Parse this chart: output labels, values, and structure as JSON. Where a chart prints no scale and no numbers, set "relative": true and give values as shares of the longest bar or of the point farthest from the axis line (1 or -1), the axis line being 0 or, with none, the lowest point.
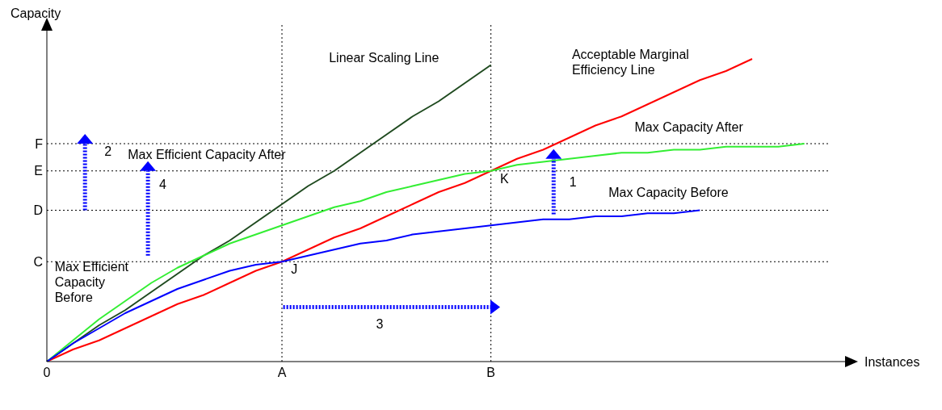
{
  "chart_data": {
    "type": "line",
    "relative": true,
    "xlabel": "Instances",
    "ylabel": "Capacity",
    "marker": "none",
    "categories": [
      "0",
      null,
      null,
      null,
      null,
      null,
      null,
      null,
      null,
      "A",
      null,
      null,
      null,
      null,
      null,
      null,
      null,
      "B",
      null,
      null,
      null,
      null,
      null,
      null,
      null,
      null,
      null,
      null,
      null,
      null,
      null
    ],
    "series": [
      {
        "name": "Linear Scaling Line",
        "color": "#1f4a1f",
        "values": [
          0,
          0.06,
          0.12,
          0.17,
          0.23,
          0.29,
          0.35,
          0.4,
          0.46,
          0.52,
          0.58,
          0.63,
          0.69,
          0.75,
          0.81,
          0.86,
          0.92,
          0.98,
          null,
          null,
          null,
          null,
          null,
          null,
          null,
          null,
          null,
          null,
          null,
          null,
          null
        ]
      },
      {
        "name": "Acceptable Marginal Efficiency Line",
        "color": "#ff0000",
        "values": [
          0,
          0.04,
          0.07,
          0.11,
          0.15,
          0.19,
          0.22,
          0.26,
          0.3,
          0.33,
          0.37,
          0.41,
          0.44,
          0.48,
          0.52,
          0.56,
          0.59,
          0.63,
          0.67,
          0.7,
          0.74,
          0.78,
          0.81,
          0.85,
          0.89,
          0.93,
          0.96,
          1.0,
          null,
          null,
          null
        ]
      },
      {
        "name": "Max Capacity After",
        "color": "#33ee33",
        "values": [
          0,
          0.07,
          0.14,
          0.2,
          0.26,
          0.31,
          0.35,
          0.39,
          0.42,
          0.45,
          0.48,
          0.51,
          0.53,
          0.56,
          0.58,
          0.6,
          0.62,
          0.63,
          0.65,
          0.66,
          0.67,
          0.68,
          0.69,
          0.69,
          0.7,
          0.7,
          0.71,
          0.71,
          0.71,
          0.72,
          null
        ]
      },
      {
        "name": "Max Capacity Before",
        "color": "#0000ff",
        "values": [
          0,
          0.06,
          0.11,
          0.16,
          0.2,
          0.24,
          0.27,
          0.3,
          0.32,
          0.33,
          0.35,
          0.37,
          0.39,
          0.4,
          0.42,
          0.43,
          0.44,
          0.45,
          0.46,
          0.47,
          0.47,
          0.48,
          0.48,
          0.49,
          0.49,
          0.5,
          null,
          null,
          null,
          null,
          null
        ]
      }
    ],
    "ref_lines": [
      {
        "axis": "y",
        "value": 0.33,
        "label": "C",
        "line_style": "dotted",
        "color": "#000000"
      },
      {
        "axis": "y",
        "value": 0.5,
        "label": "D",
        "line_style": "dotted",
        "color": "#000000"
      },
      {
        "axis": "y",
        "value": 0.63,
        "label": "E",
        "line_style": "dotted",
        "color": "#000000"
      },
      {
        "axis": "y",
        "value": 0.72,
        "label": "F",
        "line_style": "dotted",
        "color": "#000000"
      },
      {
        "axis": "x",
        "value": "A",
        "label": null,
        "line_style": "dotted",
        "color": "#000000"
      },
      {
        "axis": "x",
        "value": "B",
        "label": null,
        "line_style": "dotted",
        "color": "#000000"
      }
    ],
    "annotations": [
      "Max Efficient Capacity After",
      "Max Efficient Capacity Before",
      "J",
      "K",
      "1",
      "2",
      "3",
      "4"
    ]
  }
}
